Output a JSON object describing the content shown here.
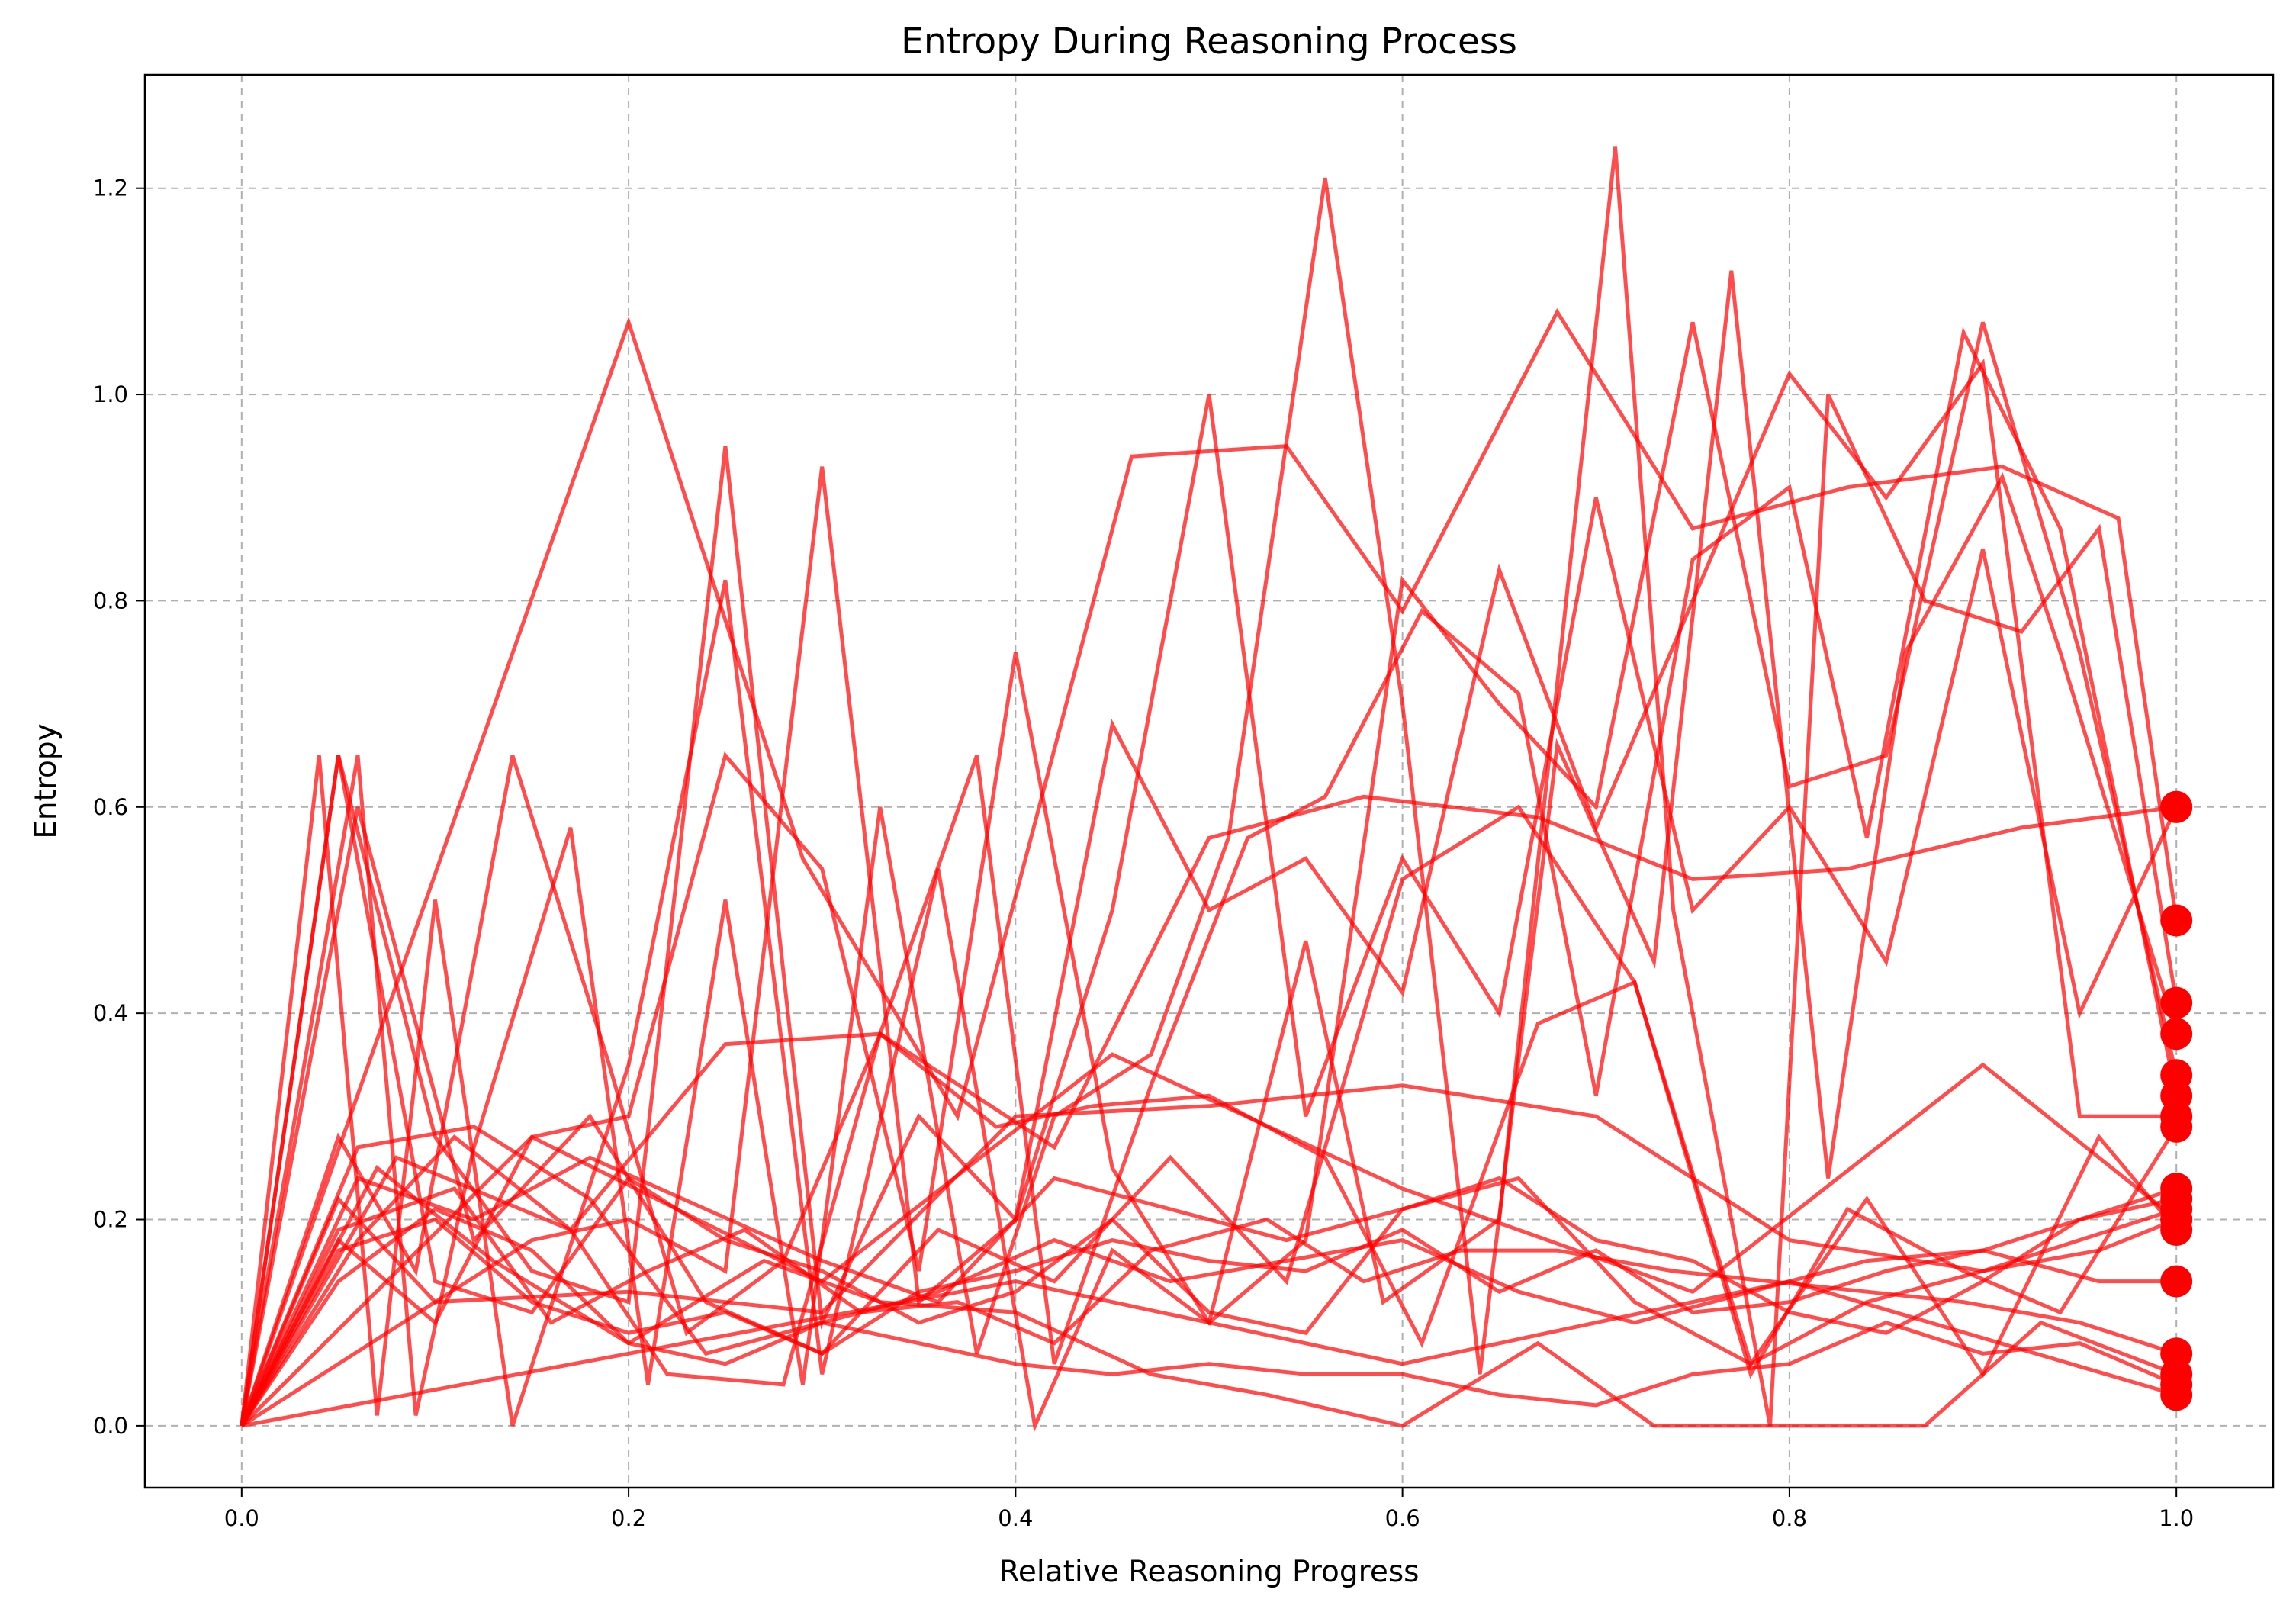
{
  "chart_data": {
    "type": "line",
    "title": "Entropy During Reasoning Process",
    "xlabel": "Relative Reasoning Progress",
    "ylabel": "Entropy",
    "xlim": [
      -0.05,
      1.05
    ],
    "ylim": [
      -0.06,
      1.31
    ],
    "xticks": [
      "0.0",
      "0.2",
      "0.4",
      "0.6",
      "0.8",
      "1.0"
    ],
    "xtick_values": [
      0.0,
      0.2,
      0.4,
      0.6,
      0.8,
      1.0
    ],
    "yticks": [
      "0.0",
      "0.2",
      "0.4",
      "0.6",
      "0.8",
      "1.0",
      "1.2"
    ],
    "ytick_values": [
      0.0,
      0.2,
      0.4,
      0.6,
      0.8,
      1.0,
      1.2
    ],
    "grid": true,
    "line_color": "#ff0000",
    "end_markers": true,
    "series": [
      {
        "x": [
          0,
          0.05,
          0.1,
          0.15,
          0.2,
          0.25,
          0.3,
          0.35,
          0.4,
          0.45,
          0.5,
          0.55,
          0.6,
          0.65,
          0.7,
          0.75,
          0.8,
          0.85,
          0.9,
          0.95,
          1.0
        ],
        "y": [
          0,
          0.65,
          0.28,
          0.15,
          0.12,
          0.95,
          0.1,
          0.3,
          0.2,
          0.5,
          1.0,
          0.3,
          0.55,
          0.4,
          0.9,
          0.5,
          0.6,
          0.45,
          0.85,
          0.4,
          0.6
        ]
      },
      {
        "x": [
          0,
          0.2,
          0.29,
          0.37,
          0.46,
          0.54,
          0.6,
          0.68,
          0.75,
          0.83,
          0.91,
          0.97,
          1.0
        ],
        "y": [
          0,
          1.07,
          0.55,
          0.3,
          0.94,
          0.95,
          0.79,
          1.08,
          0.87,
          0.91,
          0.93,
          0.88,
          0.49
        ]
      },
      {
        "x": [
          0,
          0.04,
          0.07,
          0.1,
          0.14,
          0.2,
          0.25,
          0.3,
          0.36,
          0.41,
          0.45,
          0.5,
          0.55,
          0.59,
          0.65,
          0.71,
          0.74,
          0.79,
          0.82,
          0.87,
          0.92,
          0.96,
          1.0
        ],
        "y": [
          0,
          0.65,
          0.01,
          0.51,
          0.0,
          0.35,
          0.82,
          0.05,
          0.54,
          0.0,
          0.17,
          0.1,
          0.47,
          0.12,
          0.2,
          1.24,
          0.5,
          0.0,
          1.0,
          0.8,
          0.77,
          0.87,
          0.41
        ]
      },
      {
        "x": [
          0,
          0.06,
          0.09,
          0.12,
          0.17,
          0.21,
          0.25,
          0.29,
          0.33,
          0.38,
          0.42,
          0.47,
          0.51,
          0.56,
          0.6,
          0.64,
          0.68,
          0.73,
          0.77,
          0.82,
          0.86,
          0.91,
          0.94,
          1.0
        ],
        "y": [
          0,
          0.65,
          0.01,
          0.27,
          0.58,
          0.04,
          0.51,
          0.04,
          0.6,
          0.07,
          0.3,
          0.36,
          0.57,
          1.21,
          0.7,
          0.05,
          0.66,
          0.45,
          1.12,
          0.24,
          0.75,
          0.92,
          0.75,
          0.38
        ]
      },
      {
        "x": [
          0,
          0.05,
          0.1,
          0.15,
          0.2,
          0.25,
          0.3,
          0.35,
          0.4,
          0.45,
          0.5,
          0.55,
          0.6,
          0.65,
          0.7,
          0.75,
          0.8,
          0.85,
          0.9,
          0.95,
          1.0
        ],
        "y": [
          0,
          0.18,
          0.1,
          0.28,
          0.3,
          0.65,
          0.54,
          0.15,
          0.75,
          0.25,
          0.1,
          0.18,
          0.82,
          0.7,
          0.6,
          1.07,
          0.62,
          0.65,
          1.07,
          0.75,
          0.34
        ]
      },
      {
        "x": [
          0,
          0.05,
          0.09,
          0.14,
          0.19,
          0.23,
          0.28,
          0.33,
          0.38,
          0.42,
          0.47,
          0.52,
          0.56,
          0.61,
          0.66,
          0.7,
          0.75,
          0.8,
          0.84,
          0.89,
          0.94,
          1.0
        ],
        "y": [
          0,
          0.28,
          0.15,
          0.65,
          0.35,
          0.09,
          0.16,
          0.38,
          0.65,
          0.06,
          0.33,
          0.57,
          0.61,
          0.79,
          0.71,
          0.32,
          0.84,
          0.91,
          0.57,
          1.06,
          0.87,
          0.32
        ]
      },
      {
        "x": [
          0,
          0.05,
          0.1,
          0.15,
          0.2,
          0.25,
          0.3,
          0.35,
          0.4,
          0.45,
          0.5,
          0.55,
          0.6,
          0.65,
          0.7,
          0.75,
          0.8,
          0.85,
          0.9,
          0.95,
          1.0
        ],
        "y": [
          0,
          0.22,
          0.12,
          0.18,
          0.2,
          0.15,
          0.93,
          0.12,
          0.2,
          0.68,
          0.5,
          0.55,
          0.42,
          0.83,
          0.58,
          0.8,
          1.02,
          0.9,
          1.03,
          0.3,
          0.3
        ]
      },
      {
        "x": [
          0,
          0.06,
          0.11,
          0.17,
          0.22,
          0.28,
          0.33,
          0.39,
          0.44,
          0.5,
          0.56,
          0.61,
          0.67,
          0.72,
          0.78,
          0.83,
          0.89,
          0.94,
          1.0
        ],
        "y": [
          0,
          0.18,
          0.28,
          0.19,
          0.05,
          0.04,
          0.38,
          0.29,
          0.31,
          0.32,
          0.26,
          0.08,
          0.39,
          0.43,
          0.05,
          0.21,
          0.15,
          0.11,
          0.29
        ]
      },
      {
        "x": [
          0,
          0.05,
          0.1,
          0.15,
          0.2,
          0.25,
          0.3,
          0.35,
          0.4,
          0.45,
          0.5,
          0.55,
          0.6,
          0.65,
          0.7,
          0.75,
          0.8,
          0.85,
          0.9,
          0.95,
          1.0
        ],
        "y": [
          0,
          0.17,
          0.2,
          0.12,
          0.09,
          0.11,
          0.07,
          0.13,
          0.15,
          0.18,
          0.16,
          0.15,
          0.19,
          0.13,
          0.17,
          0.11,
          0.12,
          0.15,
          0.17,
          0.2,
          0.22
        ]
      },
      {
        "x": [
          0,
          0.06,
          0.12,
          0.18,
          0.24,
          0.3,
          0.36,
          0.42,
          0.48,
          0.54,
          0.6,
          0.66,
          0.72,
          0.78,
          0.84,
          0.9,
          0.96,
          1.0
        ],
        "y": [
          0,
          0.27,
          0.29,
          0.22,
          0.07,
          0.1,
          0.13,
          0.18,
          0.14,
          0.16,
          0.18,
          0.13,
          0.1,
          0.13,
          0.16,
          0.17,
          0.14,
          0.14
        ]
      },
      {
        "x": [
          0,
          0.07,
          0.13,
          0.2,
          0.27,
          0.33,
          0.4,
          0.47,
          0.53,
          0.6,
          0.67,
          0.73,
          0.8,
          0.87,
          0.93,
          1.0
        ],
        "y": [
          0,
          0.25,
          0.16,
          0.08,
          0.16,
          0.12,
          0.11,
          0.05,
          0.03,
          0.0,
          0.08,
          0.0,
          0.0,
          0.0,
          0.1,
          0.05
        ]
      },
      {
        "x": [
          0,
          0.05,
          0.11,
          0.16,
          0.21,
          0.26,
          0.32,
          0.37,
          0.42,
          0.47,
          0.53,
          0.58,
          0.63,
          0.68,
          0.74,
          0.79,
          0.84,
          0.89,
          0.95,
          1.0
        ],
        "y": [
          0,
          0.19,
          0.23,
          0.1,
          0.15,
          0.19,
          0.11,
          0.12,
          0.08,
          0.17,
          0.2,
          0.14,
          0.17,
          0.17,
          0.15,
          0.14,
          0.13,
          0.12,
          0.1,
          0.07
        ]
      },
      {
        "x": [
          0,
          0.05,
          0.1,
          0.15,
          0.2,
          0.25,
          0.3,
          0.35,
          0.4,
          0.45,
          0.5,
          0.55,
          0.6,
          0.65,
          0.7,
          0.75,
          0.8,
          0.85,
          0.9,
          0.95,
          1.0
        ],
        "y": [
          0,
          0.14,
          0.21,
          0.17,
          0.08,
          0.06,
          0.1,
          0.08,
          0.06,
          0.05,
          0.06,
          0.05,
          0.05,
          0.03,
          0.02,
          0.05,
          0.06,
          0.1,
          0.07,
          0.08,
          0.04
        ]
      },
      {
        "x": [
          0,
          0.2,
          0.4,
          0.6,
          0.8,
          1.0
        ],
        "y": [
          0,
          0.07,
          0.14,
          0.06,
          0.14,
          0.03
        ]
      },
      {
        "x": [
          0,
          0.15,
          0.3,
          0.45,
          0.6,
          0.75,
          0.9,
          1.0
        ],
        "y": [
          0,
          0.28,
          0.14,
          0.36,
          0.23,
          0.13,
          0.35,
          0.2
        ]
      },
      {
        "x": [
          0,
          0.08,
          0.17,
          0.25,
          0.33,
          0.42,
          0.5,
          0.58,
          0.67,
          0.75,
          0.83,
          0.92,
          1.0
        ],
        "y": [
          0,
          0.26,
          0.19,
          0.37,
          0.38,
          0.27,
          0.57,
          0.61,
          0.59,
          0.53,
          0.54,
          0.58,
          0.6
        ]
      },
      {
        "x": [
          0,
          0.06,
          0.12,
          0.18,
          0.24,
          0.3,
          0.36,
          0.42,
          0.48,
          0.54,
          0.6,
          0.66,
          0.72,
          0.78,
          0.84,
          0.9,
          0.96,
          1.0
        ],
        "y": [
          0,
          0.24,
          0.2,
          0.26,
          0.21,
          0.16,
          0.12,
          0.24,
          0.21,
          0.18,
          0.21,
          0.24,
          0.12,
          0.06,
          0.12,
          0.15,
          0.17,
          0.2
        ]
      },
      {
        "x": [
          0,
          0.1,
          0.2,
          0.3,
          0.4,
          0.5,
          0.6,
          0.7,
          0.8,
          0.9,
          1.0
        ],
        "y": [
          0,
          0.12,
          0.13,
          0.11,
          0.3,
          0.31,
          0.33,
          0.3,
          0.18,
          0.15,
          0.21
        ]
      },
      {
        "x": [
          0,
          0.05,
          0.1,
          0.15,
          0.2,
          0.25,
          0.3,
          0.35,
          0.4,
          0.45,
          0.5,
          0.55,
          0.6,
          0.65,
          0.7,
          0.75,
          0.8,
          0.85,
          0.9,
          0.95,
          1.0
        ],
        "y": [
          0,
          0.65,
          0.14,
          0.11,
          0.24,
          0.18,
          0.15,
          0.1,
          0.13,
          0.2,
          0.11,
          0.09,
          0.21,
          0.24,
          0.18,
          0.16,
          0.11,
          0.09,
          0.14,
          0.2,
          0.23
        ]
      },
      {
        "x": [
          0,
          0.06,
          0.12,
          0.18,
          0.24,
          0.3,
          0.36,
          0.42,
          0.48,
          0.54,
          0.6,
          0.66,
          0.72,
          0.78,
          0.84,
          0.9,
          0.96,
          1.0
        ],
        "y": [
          0,
          0.6,
          0.18,
          0.3,
          0.12,
          0.07,
          0.19,
          0.14,
          0.26,
          0.14,
          0.53,
          0.6,
          0.43,
          0.06,
          0.22,
          0.05,
          0.28,
          0.19
        ]
      }
    ]
  }
}
